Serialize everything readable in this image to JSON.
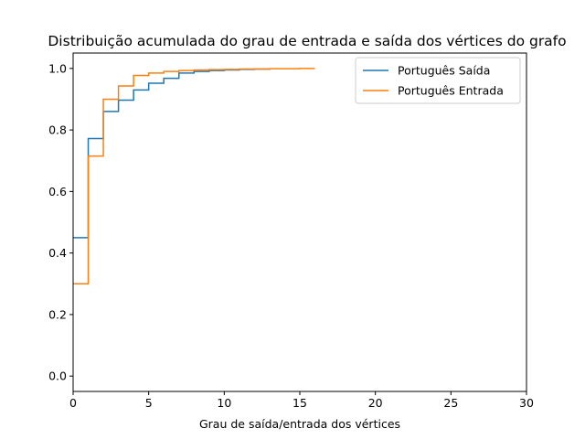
{
  "chart_data": {
    "type": "line",
    "title": "Distribuição acumulada do grau de entrada e saída dos vértices do grafo",
    "xlabel": "Grau de saída/entrada dos vértices",
    "ylabel": "",
    "xlim": [
      0,
      30
    ],
    "ylim": [
      -0.05,
      1.05
    ],
    "xticks": [
      "0",
      "5",
      "10",
      "15",
      "20",
      "25",
      "30"
    ],
    "yticks": [
      "0.0",
      "0.2",
      "0.4",
      "0.6",
      "0.8",
      "1.0"
    ],
    "grid": false,
    "legend_position": "top-right",
    "series": [
      {
        "name": "Português Saída",
        "color": "#1f77b4",
        "step": "post",
        "x": [
          0,
          1,
          2,
          3,
          4,
          5,
          6,
          7,
          8,
          9,
          10,
          11,
          12,
          13
        ],
        "y": [
          0.45,
          0.772,
          0.86,
          0.897,
          0.93,
          0.952,
          0.968,
          0.985,
          0.99,
          0.993,
          0.995,
          0.997,
          0.998,
          1.0
        ]
      },
      {
        "name": "Português Entrada",
        "color": "#ff7f0e",
        "step": "post",
        "x": [
          0,
          1,
          2,
          3,
          4,
          5,
          6,
          7,
          8,
          9,
          10,
          11,
          12,
          13,
          14,
          15,
          16
        ],
        "y": [
          0.3,
          0.715,
          0.9,
          0.943,
          0.977,
          0.985,
          0.99,
          0.993,
          0.995,
          0.996,
          0.997,
          0.998,
          0.998,
          0.999,
          0.999,
          1.0,
          1.0
        ]
      }
    ]
  }
}
